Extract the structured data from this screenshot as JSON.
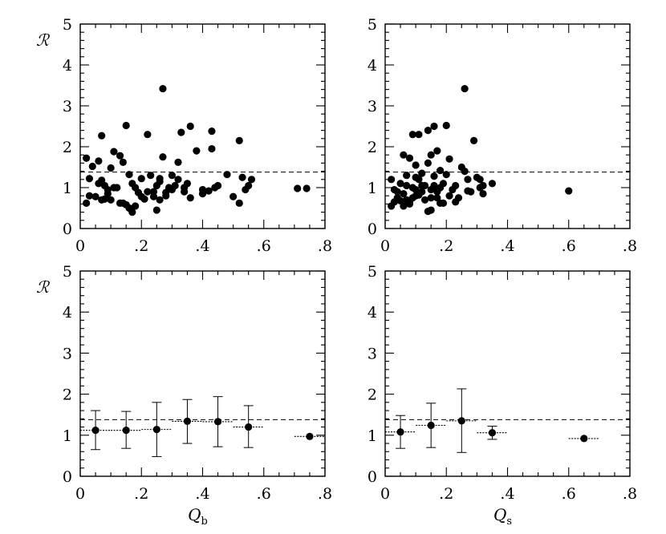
{
  "chart_data": [
    {
      "id": "top-left",
      "type": "scatter",
      "xlim": [
        0,
        0.8
      ],
      "ylim": [
        0,
        5
      ],
      "xticks": [
        "0",
        ".2",
        ".4",
        ".6",
        ".8"
      ],
      "yticks": [
        "0",
        "1",
        "2",
        "3",
        "4",
        "5"
      ],
      "ylabel": "ℛ",
      "xlabel": "",
      "reference_line": 1.38,
      "points": [
        [
          0.02,
          1.72
        ],
        [
          0.03,
          1.22
        ],
        [
          0.04,
          1.52
        ],
        [
          0.06,
          1.65
        ],
        [
          0.07,
          1.18
        ],
        [
          0.07,
          2.27
        ],
        [
          0.08,
          1.05
        ],
        [
          0.09,
          0.95
        ],
        [
          0.1,
          1.48
        ],
        [
          0.11,
          1.88
        ],
        [
          0.12,
          1.0
        ],
        [
          0.13,
          1.78
        ],
        [
          0.14,
          1.62
        ],
        [
          0.15,
          2.52
        ],
        [
          0.16,
          1.32
        ],
        [
          0.17,
          1.1
        ],
        [
          0.18,
          1.0
        ],
        [
          0.19,
          0.88
        ],
        [
          0.2,
          0.78
        ],
        [
          0.21,
          0.72
        ],
        [
          0.22,
          2.3
        ],
        [
          0.23,
          1.3
        ],
        [
          0.24,
          0.9
        ],
        [
          0.25,
          1.05
        ],
        [
          0.26,
          1.15
        ],
        [
          0.27,
          3.42
        ],
        [
          0.27,
          1.75
        ],
        [
          0.28,
          0.88
        ],
        [
          0.29,
          1.0
        ],
        [
          0.3,
          1.3
        ],
        [
          0.31,
          1.05
        ],
        [
          0.32,
          1.62
        ],
        [
          0.33,
          2.35
        ],
        [
          0.34,
          1.0
        ],
        [
          0.35,
          1.1
        ],
        [
          0.36,
          2.5
        ],
        [
          0.38,
          1.9
        ],
        [
          0.4,
          0.85
        ],
        [
          0.42,
          0.92
        ],
        [
          0.43,
          1.95
        ],
        [
          0.43,
          2.38
        ],
        [
          0.45,
          1.05
        ],
        [
          0.48,
          1.32
        ],
        [
          0.5,
          0.78
        ],
        [
          0.52,
          2.15
        ],
        [
          0.53,
          1.25
        ],
        [
          0.55,
          1.05
        ],
        [
          0.56,
          1.2
        ],
        [
          0.71,
          0.98
        ],
        [
          0.74,
          0.98
        ],
        [
          0.02,
          0.62
        ],
        [
          0.03,
          0.8
        ],
        [
          0.05,
          0.78
        ],
        [
          0.06,
          1.1
        ],
        [
          0.07,
          0.7
        ],
        [
          0.08,
          0.72
        ],
        [
          0.09,
          0.85
        ],
        [
          0.1,
          0.7
        ],
        [
          0.11,
          1.0
        ],
        [
          0.13,
          0.62
        ],
        [
          0.14,
          0.62
        ],
        [
          0.15,
          0.58
        ],
        [
          0.16,
          0.5
        ],
        [
          0.17,
          0.4
        ],
        [
          0.18,
          0.55
        ],
        [
          0.2,
          1.22
        ],
        [
          0.22,
          0.9
        ],
        [
          0.24,
          0.78
        ],
        [
          0.25,
          0.45
        ],
        [
          0.26,
          0.7
        ],
        [
          0.28,
          0.8
        ],
        [
          0.3,
          0.95
        ],
        [
          0.32,
          1.2
        ],
        [
          0.34,
          0.9
        ],
        [
          0.36,
          0.75
        ],
        [
          0.4,
          0.95
        ],
        [
          0.44,
          1.0
        ],
        [
          0.52,
          0.62
        ],
        [
          0.54,
          0.95
        ],
        [
          0.26,
          1.22
        ]
      ]
    },
    {
      "id": "top-right",
      "type": "scatter",
      "xlim": [
        0,
        0.8
      ],
      "ylim": [
        0,
        5
      ],
      "xticks": [
        "0",
        ".2",
        ".4",
        ".6",
        ".8"
      ],
      "yticks": [
        "0",
        "1",
        "2",
        "3",
        "4",
        "5"
      ],
      "ylabel": "",
      "xlabel": "",
      "reference_line": 1.38,
      "points": [
        [
          0.02,
          1.2
        ],
        [
          0.03,
          0.95
        ],
        [
          0.04,
          0.75
        ],
        [
          0.05,
          1.1
        ],
        [
          0.06,
          1.8
        ],
        [
          0.06,
          0.85
        ],
        [
          0.07,
          1.3
        ],
        [
          0.08,
          1.72
        ],
        [
          0.08,
          0.65
        ],
        [
          0.09,
          2.3
        ],
        [
          0.09,
          1.0
        ],
        [
          0.1,
          1.55
        ],
        [
          0.1,
          0.8
        ],
        [
          0.11,
          2.3
        ],
        [
          0.11,
          1.2
        ],
        [
          0.12,
          1.35
        ],
        [
          0.12,
          0.9
        ],
        [
          0.13,
          1.05
        ],
        [
          0.14,
          2.4
        ],
        [
          0.14,
          1.6
        ],
        [
          0.15,
          0.45
        ],
        [
          0.15,
          0.95
        ],
        [
          0.16,
          2.5
        ],
        [
          0.16,
          1.28
        ],
        [
          0.17,
          1.9
        ],
        [
          0.17,
          0.75
        ],
        [
          0.18,
          1.42
        ],
        [
          0.18,
          1.0
        ],
        [
          0.19,
          0.62
        ],
        [
          0.2,
          1.32
        ],
        [
          0.2,
          2.52
        ],
        [
          0.21,
          1.7
        ],
        [
          0.22,
          0.95
        ],
        [
          0.23,
          1.05
        ],
        [
          0.24,
          0.75
        ],
        [
          0.25,
          1.5
        ],
        [
          0.26,
          3.42
        ],
        [
          0.26,
          1.4
        ],
        [
          0.27,
          1.2
        ],
        [
          0.28,
          0.9
        ],
        [
          0.29,
          2.15
        ],
        [
          0.3,
          1.25
        ],
        [
          0.31,
          1.0
        ],
        [
          0.32,
          0.85
        ],
        [
          0.35,
          1.1
        ],
        [
          0.6,
          0.92
        ],
        [
          0.02,
          0.55
        ],
        [
          0.03,
          0.65
        ],
        [
          0.04,
          0.9
        ],
        [
          0.05,
          0.68
        ],
        [
          0.06,
          0.55
        ],
        [
          0.07,
          0.7
        ],
        [
          0.08,
          0.6
        ],
        [
          0.09,
          0.75
        ],
        [
          0.1,
          0.95
        ],
        [
          0.11,
          0.82
        ],
        [
          0.12,
          1.05
        ],
        [
          0.13,
          0.7
        ],
        [
          0.14,
          0.42
        ],
        [
          0.15,
          0.75
        ],
        [
          0.16,
          1.05
        ],
        [
          0.17,
          0.9
        ],
        [
          0.18,
          0.62
        ],
        [
          0.19,
          1.1
        ],
        [
          0.21,
          0.8
        ],
        [
          0.23,
          0.65
        ],
        [
          0.27,
          0.92
        ],
        [
          0.31,
          1.2
        ],
        [
          0.32,
          1.05
        ],
        [
          0.15,
          1.8
        ],
        [
          0.07,
          1.05
        ],
        [
          0.1,
          1.25
        ]
      ]
    },
    {
      "id": "bottom-left",
      "type": "scatter",
      "xlim": [
        0,
        0.8
      ],
      "ylim": [
        0,
        5
      ],
      "xticks": [
        "0",
        ".2",
        ".4",
        ".6",
        ".8"
      ],
      "yticks": [
        "0",
        "1",
        "2",
        "3",
        "4",
        "5"
      ],
      "ylabel": "ℛ",
      "xlabel": "Q",
      "xlabel_sub": "b",
      "reference_line": 1.38,
      "binned": [
        {
          "x": 0.05,
          "y": 1.12,
          "ylo": 0.65,
          "yhi": 1.6,
          "xlo": 0.0,
          "xhi": 0.1
        },
        {
          "x": 0.15,
          "y": 1.12,
          "ylo": 0.68,
          "yhi": 1.58,
          "xlo": 0.1,
          "xhi": 0.2
        },
        {
          "x": 0.25,
          "y": 1.14,
          "ylo": 0.48,
          "yhi": 1.8,
          "xlo": 0.2,
          "xhi": 0.3
        },
        {
          "x": 0.35,
          "y": 1.34,
          "ylo": 0.8,
          "yhi": 1.87,
          "xlo": 0.3,
          "xhi": 0.4
        },
        {
          "x": 0.45,
          "y": 1.33,
          "ylo": 0.72,
          "yhi": 1.94,
          "xlo": 0.4,
          "xhi": 0.5
        },
        {
          "x": 0.55,
          "y": 1.2,
          "ylo": 0.7,
          "yhi": 1.72,
          "xlo": 0.5,
          "xhi": 0.6
        },
        {
          "x": 0.75,
          "y": 0.97,
          "ylo": 0.97,
          "yhi": 0.97,
          "xlo": 0.7,
          "xhi": 0.8
        }
      ]
    },
    {
      "id": "bottom-right",
      "type": "scatter",
      "xlim": [
        0,
        0.8
      ],
      "ylim": [
        0,
        5
      ],
      "xticks": [
        "0",
        ".2",
        ".4",
        ".6",
        ".8"
      ],
      "yticks": [
        "0",
        "1",
        "2",
        "3",
        "4",
        "5"
      ],
      "ylabel": "",
      "xlabel": "Q",
      "xlabel_sub": "s",
      "reference_line": 1.38,
      "binned": [
        {
          "x": 0.05,
          "y": 1.08,
          "ylo": 0.68,
          "yhi": 1.48,
          "xlo": 0.0,
          "xhi": 0.1
        },
        {
          "x": 0.15,
          "y": 1.24,
          "ylo": 0.7,
          "yhi": 1.78,
          "xlo": 0.1,
          "xhi": 0.2
        },
        {
          "x": 0.25,
          "y": 1.35,
          "ylo": 0.58,
          "yhi": 2.13,
          "xlo": 0.2,
          "xhi": 0.3
        },
        {
          "x": 0.35,
          "y": 1.06,
          "ylo": 0.9,
          "yhi": 1.22,
          "xlo": 0.3,
          "xhi": 0.4
        },
        {
          "x": 0.65,
          "y": 0.92,
          "ylo": 0.92,
          "yhi": 0.92,
          "xlo": 0.6,
          "xhi": 0.7
        }
      ]
    }
  ]
}
